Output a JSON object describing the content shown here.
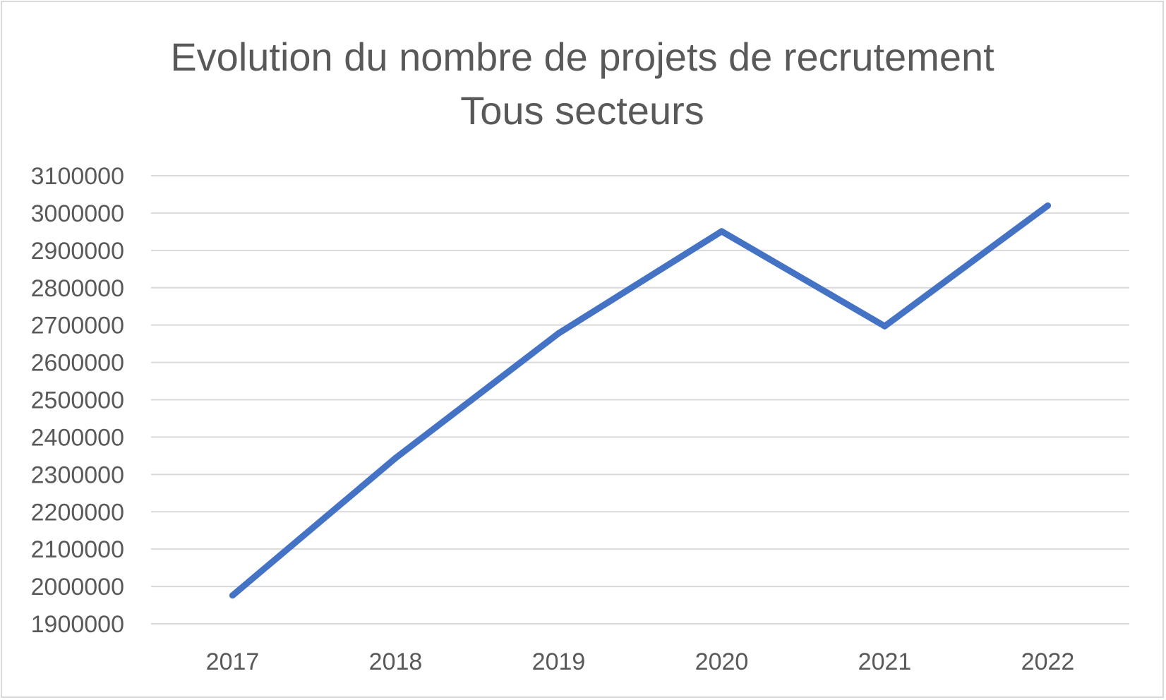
{
  "chart_data": {
    "type": "line",
    "title": "Evolution du nombre de projets de recrutement",
    "subtitle": "Tous secteurs",
    "categories": [
      "2017",
      "2018",
      "2019",
      "2020",
      "2021",
      "2022"
    ],
    "series": [
      {
        "values": [
          1976000,
          2344000,
          2678000,
          2951000,
          2697000,
          3020000
        ],
        "color": "#4472c4"
      }
    ],
    "ylim": [
      1900000,
      3100000
    ],
    "ystep": 100000,
    "yticks": [
      "1900000",
      "2000000",
      "2100000",
      "2200000",
      "2300000",
      "2400000",
      "2500000",
      "2600000",
      "2700000",
      "2800000",
      "2900000",
      "3000000",
      "3100000"
    ],
    "grid": true,
    "gridColor": "#d9d9d9",
    "legend": "none"
  }
}
